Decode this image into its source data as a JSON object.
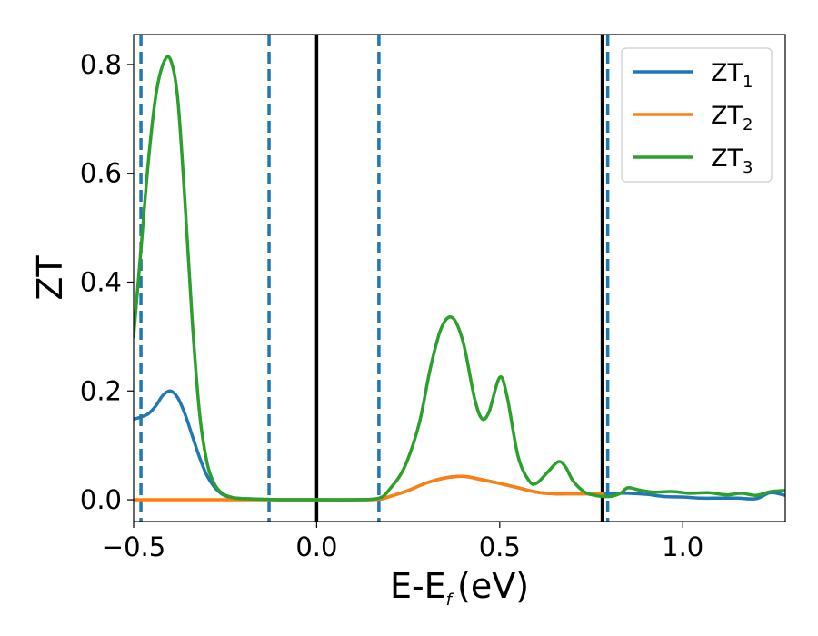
{
  "chart_data": {
    "type": "line",
    "xlabel": "E-E",
    "xlabel_sub": "f",
    "xlabel_unit": "(eV)",
    "ylabel": "ZT",
    "xlim": [
      -0.5,
      1.28
    ],
    "ylim": [
      -0.04,
      0.855
    ],
    "xticks": [
      -0.5,
      0.0,
      0.5,
      1.0
    ],
    "xtick_labels": [
      "−0.5",
      "0.0",
      "0.5",
      "1.0"
    ],
    "yticks": [
      0.0,
      0.2,
      0.4,
      0.6,
      0.8
    ],
    "ytick_labels": [
      "0.0",
      "0.2",
      "0.4",
      "0.6",
      "0.8"
    ],
    "grid": false,
    "legend": {
      "placement": "top-right"
    },
    "vlines": [
      {
        "x": -0.48,
        "style": "dashed",
        "color": "#1f77b4"
      },
      {
        "x": -0.13,
        "style": "dashed",
        "color": "#1f77b4"
      },
      {
        "x": 0.0,
        "style": "solid",
        "color": "#000000"
      },
      {
        "x": 0.17,
        "style": "dashed",
        "color": "#1f77b4"
      },
      {
        "x": 0.78,
        "style": "solid",
        "color": "#000000"
      },
      {
        "x": 0.795,
        "style": "dashed",
        "color": "#1f77b4"
      }
    ],
    "series": [
      {
        "name": "ZT",
        "name_sub": "1",
        "color": "#1f77b4",
        "x": [
          -0.5,
          -0.48,
          -0.46,
          -0.44,
          -0.42,
          -0.4,
          -0.38,
          -0.36,
          -0.34,
          -0.32,
          -0.3,
          -0.28,
          -0.26,
          -0.24,
          -0.22,
          -0.2,
          -0.15,
          -0.1,
          0.0,
          0.1,
          0.17,
          0.2,
          0.25,
          0.3,
          0.35,
          0.4,
          0.45,
          0.5,
          0.55,
          0.6,
          0.65,
          0.7,
          0.75,
          0.8,
          0.85,
          0.9,
          0.95,
          1.0,
          1.05,
          1.1,
          1.15,
          1.2,
          1.24,
          1.28
        ],
        "y": [
          0.148,
          0.152,
          0.158,
          0.172,
          0.192,
          0.2,
          0.188,
          0.158,
          0.118,
          0.078,
          0.045,
          0.024,
          0.011,
          0.005,
          0.003,
          0.002,
          0.001,
          0.0,
          0.0,
          0.0,
          0.001,
          0.006,
          0.017,
          0.031,
          0.04,
          0.043,
          0.037,
          0.03,
          0.022,
          0.014,
          0.011,
          0.011,
          0.011,
          0.012,
          0.012,
          0.01,
          0.006,
          0.005,
          0.003,
          0.003,
          0.003,
          0.002,
          0.013,
          0.008
        ]
      },
      {
        "name": "ZT",
        "name_sub": "2",
        "color": "#ff7f0e",
        "x": [
          -0.5,
          -0.4,
          -0.2,
          0.0,
          0.1,
          0.17,
          0.2,
          0.25,
          0.3,
          0.35,
          0.4,
          0.45,
          0.5,
          0.55,
          0.6,
          0.65,
          0.7,
          0.75,
          0.78
        ],
        "y": [
          0.0,
          0.0,
          0.0,
          0.0,
          0.0,
          0.001,
          0.006,
          0.017,
          0.031,
          0.04,
          0.043,
          0.037,
          0.03,
          0.022,
          0.014,
          0.011,
          0.011,
          0.011,
          0.011
        ]
      },
      {
        "name": "ZT",
        "name_sub": "3",
        "color": "#2ca02c",
        "x": [
          -0.5,
          -0.48,
          -0.46,
          -0.44,
          -0.42,
          -0.4,
          -0.38,
          -0.36,
          -0.34,
          -0.32,
          -0.3,
          -0.28,
          -0.26,
          -0.24,
          -0.22,
          -0.2,
          -0.15,
          -0.1,
          0.0,
          0.1,
          0.17,
          0.2,
          0.24,
          0.28,
          0.31,
          0.34,
          0.37,
          0.4,
          0.43,
          0.45,
          0.47,
          0.5,
          0.52,
          0.55,
          0.58,
          0.6,
          0.63,
          0.66,
          0.68,
          0.7,
          0.73,
          0.76,
          0.8,
          0.83,
          0.85,
          0.88,
          0.92,
          0.97,
          1.02,
          1.07,
          1.12,
          1.16,
          1.2,
          1.24,
          1.28
        ],
        "y": [
          0.3,
          0.46,
          0.62,
          0.74,
          0.8,
          0.81,
          0.74,
          0.55,
          0.33,
          0.16,
          0.07,
          0.03,
          0.013,
          0.006,
          0.003,
          0.002,
          0.001,
          0.0,
          0.0,
          0.0,
          0.003,
          0.02,
          0.06,
          0.14,
          0.24,
          0.315,
          0.335,
          0.29,
          0.19,
          0.15,
          0.16,
          0.225,
          0.19,
          0.08,
          0.035,
          0.03,
          0.05,
          0.07,
          0.06,
          0.035,
          0.015,
          0.008,
          0.006,
          0.012,
          0.022,
          0.018,
          0.014,
          0.015,
          0.012,
          0.013,
          0.009,
          0.012,
          0.008,
          0.015,
          0.017
        ]
      }
    ]
  }
}
